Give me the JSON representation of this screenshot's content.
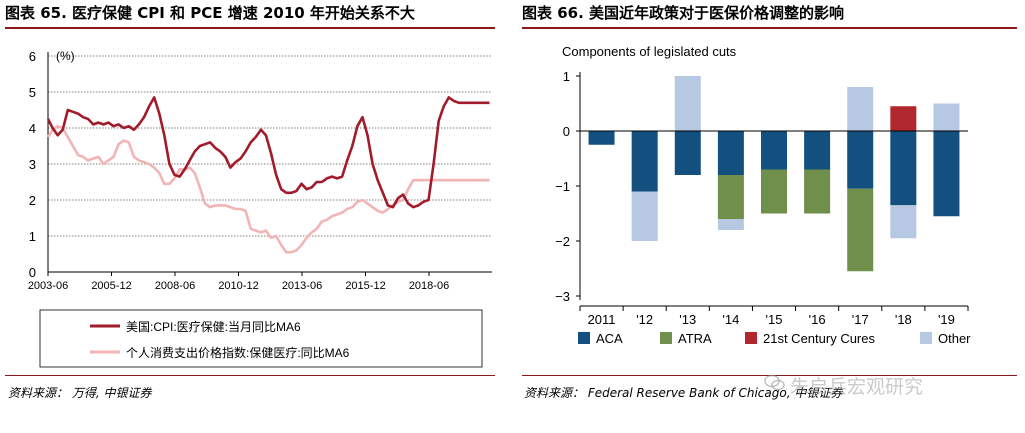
{
  "left_panel": {
    "title": "图表 65. 医疗保健 CPI 和 PCE 增速 2010 年开始关系不大",
    "source": "资料来源： 万得, 中银证券",
    "colors": {
      "series1": "#a11b2b",
      "series2": "#f2b4b4"
    }
  },
  "right_panel": {
    "title": "图表 66. 美国近年政策对于医保价格调整的影响",
    "source": "资料来源： Federal Reserve Bank of Chicago, 中银证券",
    "colors": {
      "ACA": "#14507f",
      "ATRA": "#6f8f4a",
      "21st Century Cures": "#b0272d",
      "Other": "#b6c8e2"
    }
  },
  "watermark": {
    "text": "朱启兵宏观研究"
  },
  "chart_data": [
    {
      "type": "line",
      "ylabel": "(%)",
      "ylim": [
        0,
        6
      ],
      "y_ticks": [
        "0",
        "1",
        "2",
        "3",
        "4",
        "5",
        "6"
      ],
      "x_tick_labels": [
        "2003-06",
        "2005-12",
        "2008-06",
        "2010-12",
        "2013-06",
        "2015-12",
        "2018-06"
      ],
      "xlim": [
        2003.42,
        2020.9
      ],
      "grid": true,
      "legend": "bottom",
      "series": [
        {
          "name": "美国:CPI:医疗保健:当月同比MA6",
          "x": [
            2003.42,
            2003.6,
            2003.8,
            2004.0,
            2004.2,
            2004.4,
            2004.6,
            2004.8,
            2005.0,
            2005.2,
            2005.4,
            2005.6,
            2005.8,
            2006.0,
            2006.2,
            2006.4,
            2006.6,
            2006.8,
            2007.0,
            2007.2,
            2007.4,
            2007.6,
            2007.8,
            2008.0,
            2008.2,
            2008.4,
            2008.6,
            2008.8,
            2009.0,
            2009.2,
            2009.4,
            2009.6,
            2009.8,
            2010.0,
            2010.2,
            2010.4,
            2010.6,
            2010.8,
            2011.0,
            2011.2,
            2011.4,
            2011.6,
            2011.8,
            2012.0,
            2012.2,
            2012.4,
            2012.6,
            2012.8,
            2013.0,
            2013.2,
            2013.4,
            2013.6,
            2013.8,
            2014.0,
            2014.2,
            2014.4,
            2014.6,
            2014.8,
            2015.0,
            2015.2,
            2015.4,
            2015.6,
            2015.8,
            2016.0,
            2016.2,
            2016.4,
            2016.6,
            2016.8,
            2017.0,
            2017.2,
            2017.4,
            2017.6,
            2017.8,
            2018.0,
            2018.2,
            2018.4,
            2018.6,
            2018.8,
            2019.0,
            2019.2,
            2019.4,
            2019.6,
            2019.8,
            2020.0,
            2020.2,
            2020.4,
            2020.6,
            2020.8
          ],
          "values": [
            4.25,
            4.0,
            3.8,
            3.95,
            4.5,
            4.45,
            4.4,
            4.3,
            4.25,
            4.1,
            4.15,
            4.1,
            4.15,
            4.05,
            4.1,
            4.0,
            4.05,
            3.95,
            4.1,
            4.3,
            4.6,
            4.85,
            4.4,
            3.8,
            3.0,
            2.7,
            2.65,
            2.85,
            3.1,
            3.35,
            3.5,
            3.55,
            3.6,
            3.45,
            3.35,
            3.2,
            2.9,
            3.05,
            3.15,
            3.35,
            3.6,
            3.75,
            3.95,
            3.8,
            3.3,
            2.7,
            2.3,
            2.2,
            2.2,
            2.25,
            2.45,
            2.3,
            2.35,
            2.5,
            2.5,
            2.6,
            2.65,
            2.6,
            2.65,
            3.1,
            3.5,
            4.05,
            4.3,
            3.8,
            3.0,
            2.55,
            2.2,
            1.85,
            1.8,
            2.05,
            2.15,
            1.9,
            1.8,
            1.85,
            1.95,
            2.0,
            3.0,
            4.2,
            4.6,
            4.85,
            4.75,
            4.7,
            4.7,
            4.7,
            4.7,
            4.7,
            4.7,
            4.7
          ]
        },
        {
          "name": "个人消费支出价格指数:保健医疗:同比MA6",
          "x": [
            2003.42,
            2003.6,
            2003.8,
            2004.0,
            2004.2,
            2004.4,
            2004.6,
            2004.8,
            2005.0,
            2005.2,
            2005.4,
            2005.6,
            2005.8,
            2006.0,
            2006.2,
            2006.4,
            2006.6,
            2006.8,
            2007.0,
            2007.2,
            2007.4,
            2007.6,
            2007.8,
            2008.0,
            2008.2,
            2008.4,
            2008.6,
            2008.8,
            2009.0,
            2009.2,
            2009.4,
            2009.6,
            2009.8,
            2010.0,
            2010.2,
            2010.4,
            2010.6,
            2010.8,
            2011.0,
            2011.2,
            2011.4,
            2011.6,
            2011.8,
            2012.0,
            2012.2,
            2012.4,
            2012.6,
            2012.8,
            2013.0,
            2013.2,
            2013.4,
            2013.6,
            2013.8,
            2014.0,
            2014.2,
            2014.4,
            2014.6,
            2014.8,
            2015.0,
            2015.2,
            2015.4,
            2015.6,
            2015.8,
            2016.0,
            2016.2,
            2016.4,
            2016.6,
            2016.8,
            2017.0,
            2017.2,
            2017.4,
            2017.6,
            2017.8,
            2018.0,
            2018.2,
            2018.4,
            2018.6,
            2018.8,
            2019.0,
            2019.2,
            2019.4,
            2019.6,
            2019.8,
            2020.0,
            2020.2,
            2020.4,
            2020.6,
            2020.8
          ],
          "values": [
            3.75,
            3.95,
            4.05,
            4.0,
            3.75,
            3.5,
            3.25,
            3.2,
            3.1,
            3.15,
            3.2,
            3.0,
            3.1,
            3.2,
            3.55,
            3.65,
            3.6,
            3.2,
            3.1,
            3.05,
            3.0,
            2.9,
            2.75,
            2.45,
            2.45,
            2.6,
            2.85,
            2.85,
            2.9,
            2.75,
            2.35,
            1.9,
            1.8,
            1.85,
            1.85,
            1.85,
            1.8,
            1.75,
            1.75,
            1.7,
            1.2,
            1.15,
            1.1,
            1.15,
            0.95,
            1.0,
            0.75,
            0.55,
            0.55,
            0.6,
            0.75,
            0.95,
            1.1,
            1.2,
            1.4,
            1.45,
            1.55,
            1.6,
            1.65,
            1.75,
            1.8,
            1.95,
            2.0,
            1.9,
            1.8,
            1.7,
            1.65,
            1.75,
            1.85,
            1.95,
            2.0,
            2.3,
            2.55,
            2.55,
            2.55,
            2.55,
            2.55,
            2.55,
            2.55,
            2.55,
            2.55,
            2.55,
            2.55,
            2.55,
            2.55,
            2.55,
            2.55,
            2.55
          ]
        }
      ]
    },
    {
      "type": "bar",
      "title": "Components of legislated cuts",
      "categories": [
        "2011",
        "'12",
        "'13",
        "'14",
        "'15",
        "'16",
        "'17",
        "'18",
        "'19"
      ],
      "ylim": [
        -3,
        1
      ],
      "y_ticks": [
        "1",
        "0",
        "−1",
        "−2",
        "−3"
      ],
      "legend": "bottom",
      "series": [
        {
          "name": "ACA",
          "values": [
            -0.25,
            -1.1,
            -0.8,
            -0.8,
            -0.7,
            -0.7,
            -1.05,
            -1.35,
            -1.55
          ]
        },
        {
          "name": "ATRA",
          "values": [
            0,
            0,
            0,
            -0.8,
            -0.8,
            -0.8,
            -1.5,
            0,
            0
          ]
        },
        {
          "name": "21st Century Cures",
          "values": [
            0,
            0,
            0,
            0,
            0,
            0,
            0,
            0.45,
            0
          ]
        },
        {
          "name": "Other",
          "values": [
            0,
            -0.9,
            1.0,
            -0.2,
            0,
            0,
            0.8,
            -0.6,
            0.5
          ]
        }
      ]
    }
  ]
}
